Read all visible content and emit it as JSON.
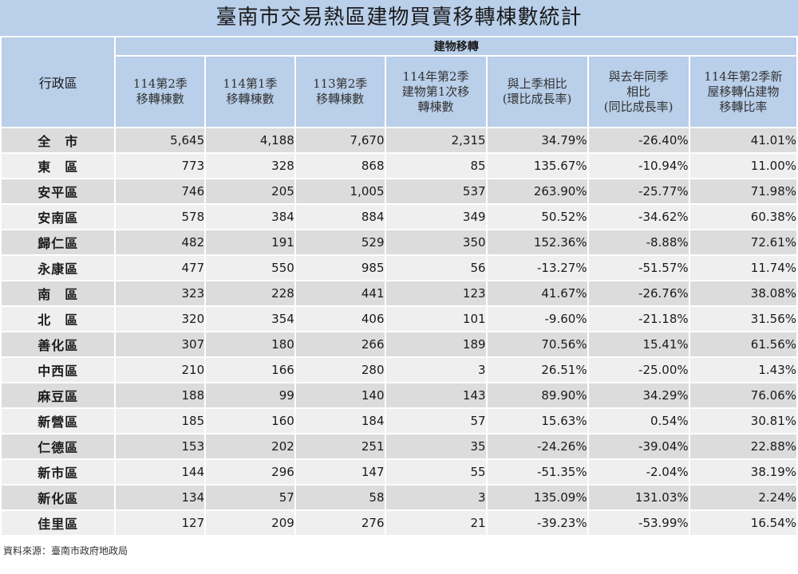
{
  "title": "臺南市交易熱區建物買賣移轉棟數統計",
  "header": {
    "region": "行政區",
    "group": "建物移轉",
    "columns": [
      "114第2季\n移轉棟數",
      "114第1季\n移轉棟數",
      "113第2季\n移轉棟數",
      "114年第2季\n建物第1次移\n轉棟數",
      "與上季相比\n(環比成長率)",
      "與去年同季\n相比\n(同比成長率)",
      "114年第2季新\n屋移轉佔建物\n移轉比率"
    ]
  },
  "rows": [
    {
      "name": "全　市",
      "v": [
        "5,645",
        "4,188",
        "7,670",
        "2,315",
        "34.79%",
        "-26.40%",
        "41.01%"
      ]
    },
    {
      "name": "東　區",
      "v": [
        "773",
        "328",
        "868",
        "85",
        "135.67%",
        "-10.94%",
        "11.00%"
      ]
    },
    {
      "name": "安平區",
      "v": [
        "746",
        "205",
        "1,005",
        "537",
        "263.90%",
        "-25.77%",
        "71.98%"
      ]
    },
    {
      "name": "安南區",
      "v": [
        "578",
        "384",
        "884",
        "349",
        "50.52%",
        "-34.62%",
        "60.38%"
      ]
    },
    {
      "name": "歸仁區",
      "v": [
        "482",
        "191",
        "529",
        "350",
        "152.36%",
        "-8.88%",
        "72.61%"
      ]
    },
    {
      "name": "永康區",
      "v": [
        "477",
        "550",
        "985",
        "56",
        "-13.27%",
        "-51.57%",
        "11.74%"
      ]
    },
    {
      "name": "南　區",
      "v": [
        "323",
        "228",
        "441",
        "123",
        "41.67%",
        "-26.76%",
        "38.08%"
      ]
    },
    {
      "name": "北　區",
      "v": [
        "320",
        "354",
        "406",
        "101",
        "-9.60%",
        "-21.18%",
        "31.56%"
      ]
    },
    {
      "name": "善化區",
      "v": [
        "307",
        "180",
        "266",
        "189",
        "70.56%",
        "15.41%",
        "61.56%"
      ]
    },
    {
      "name": "中西區",
      "v": [
        "210",
        "166",
        "280",
        "3",
        "26.51%",
        "-25.00%",
        "1.43%"
      ]
    },
    {
      "name": "麻豆區",
      "v": [
        "188",
        "99",
        "140",
        "143",
        "89.90%",
        "34.29%",
        "76.06%"
      ]
    },
    {
      "name": "新營區",
      "v": [
        "185",
        "160",
        "184",
        "57",
        "15.63%",
        "0.54%",
        "30.81%"
      ]
    },
    {
      "name": "仁德區",
      "v": [
        "153",
        "202",
        "251",
        "35",
        "-24.26%",
        "-39.04%",
        "22.88%"
      ]
    },
    {
      "name": "新市區",
      "v": [
        "144",
        "296",
        "147",
        "55",
        "-51.35%",
        "-2.04%",
        "38.19%"
      ]
    },
    {
      "name": "新化區",
      "v": [
        "134",
        "57",
        "58",
        "3",
        "135.09%",
        "131.03%",
        "2.24%"
      ]
    },
    {
      "name": "佳里區",
      "v": [
        "127",
        "209",
        "276",
        "21",
        "-39.23%",
        "-53.99%",
        "16.54%"
      ]
    }
  ],
  "source": "資料來源：臺南市政府地政局",
  "colors": {
    "header_bg": "#b9cfea",
    "row_odd": "#dcdcdc",
    "row_even": "#efefef"
  }
}
